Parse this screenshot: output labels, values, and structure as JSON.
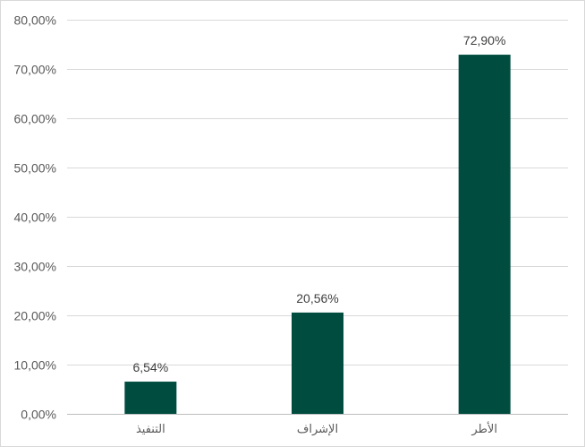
{
  "chart_data": {
    "type": "bar",
    "categories": [
      "التنفيذ",
      "الإشراف",
      "الأطر"
    ],
    "values": [
      6.54,
      20.56,
      72.9
    ],
    "data_labels": [
      "6,54%",
      "20,56%",
      "72,90%"
    ],
    "title": "",
    "xlabel": "",
    "ylabel": "",
    "ylim": [
      0,
      80
    ],
    "yticks": [
      0,
      10,
      20,
      30,
      40,
      50,
      60,
      70,
      80
    ],
    "ytick_labels": [
      "0,00%",
      "10,00%",
      "20,00%",
      "30,00%",
      "40,00%",
      "50,00%",
      "60,00%",
      "70,00%",
      "80,00%"
    ],
    "grid": true,
    "legend": "none",
    "colors": {
      "bar": "#004d40",
      "grid": "#d9d9d9",
      "axis": "#bfbfbf",
      "text": "#595959"
    }
  }
}
